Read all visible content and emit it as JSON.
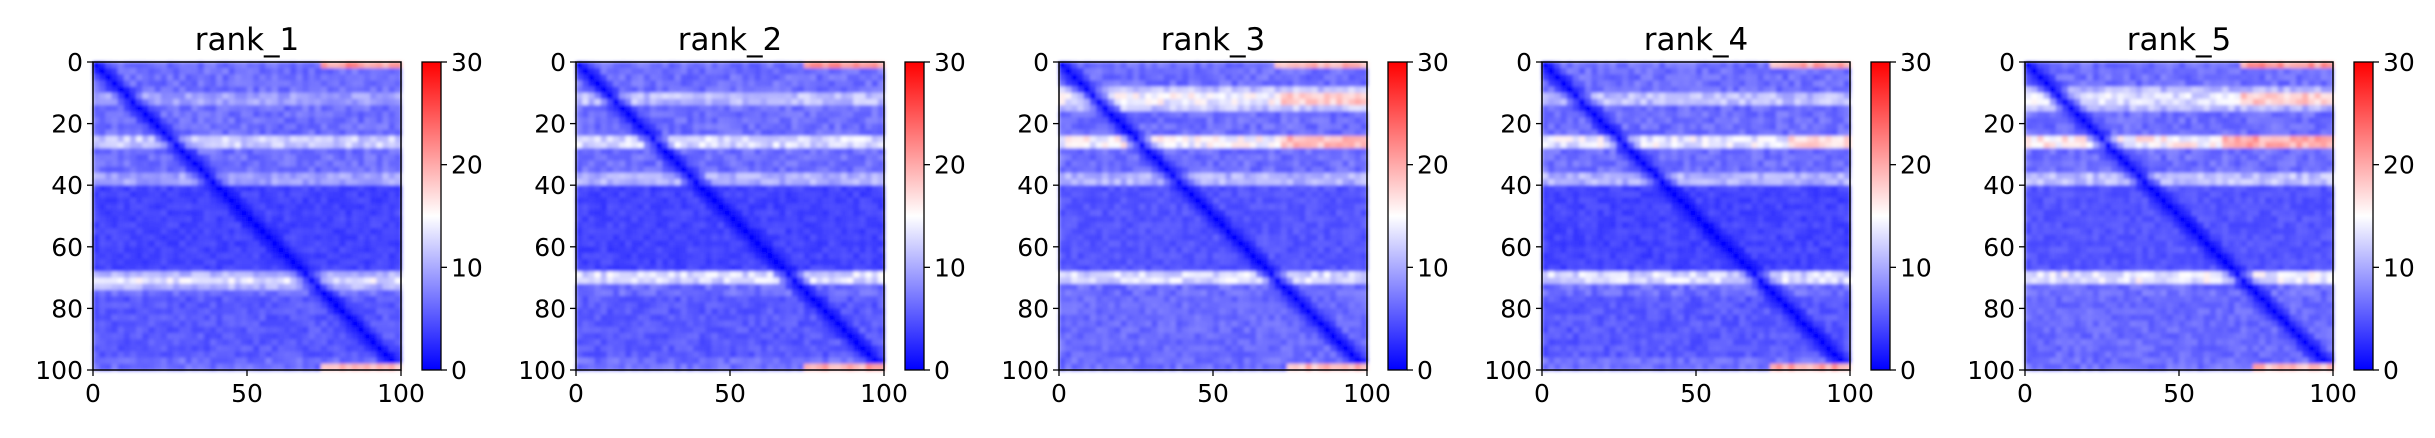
{
  "chart_data": [
    {
      "type": "heatmap",
      "title": "rank_1",
      "xlim": [
        0,
        100
      ],
      "ylim": [
        100,
        0
      ],
      "xticks": [
        "0",
        "50",
        "100"
      ],
      "yticks": [
        "0",
        "20",
        "40",
        "60",
        "80",
        "100"
      ],
      "colorbar": {
        "range": [
          0,
          30
        ],
        "ticks": [
          "0",
          "10",
          "20",
          "30"
        ],
        "colormap": "bwr"
      },
      "bands": [
        {
          "center": 12,
          "width": 3,
          "value": 11
        },
        {
          "center": 26,
          "width": 3,
          "value": 14
        },
        {
          "center": 38,
          "width": 2,
          "value": 12
        },
        {
          "center": 71,
          "width": 3,
          "value": 14
        }
      ],
      "red_patches": [
        {
          "x": [
            75,
            100
          ],
          "y": [
            0,
            2
          ],
          "value": 22
        },
        {
          "x": [
            75,
            100
          ],
          "y": [
            98,
            100
          ],
          "value": 20
        }
      ],
      "diagonal_value": 0,
      "lower_block_value": 3
    },
    {
      "type": "heatmap",
      "title": "rank_2",
      "xlim": [
        0,
        100
      ],
      "ylim": [
        100,
        0
      ],
      "xticks": [
        "0",
        "50",
        "100"
      ],
      "yticks": [
        "0",
        "20",
        "40",
        "60",
        "80",
        "100"
      ],
      "colorbar": {
        "range": [
          0,
          30
        ],
        "ticks": [
          "0",
          "10",
          "20",
          "30"
        ],
        "colormap": "bwr"
      },
      "bands": [
        {
          "center": 12,
          "width": 3,
          "value": 13
        },
        {
          "center": 26,
          "width": 3,
          "value": 15
        },
        {
          "center": 38,
          "width": 2,
          "value": 13
        },
        {
          "center": 70,
          "width": 3,
          "value": 15
        }
      ],
      "red_patches": [
        {
          "x": [
            75,
            100
          ],
          "y": [
            0,
            2
          ],
          "value": 22
        },
        {
          "x": [
            75,
            100
          ],
          "y": [
            98,
            100
          ],
          "value": 21
        }
      ],
      "diagonal_value": 0,
      "lower_block_value": 3
    },
    {
      "type": "heatmap",
      "title": "rank_3",
      "xlim": [
        0,
        100
      ],
      "ylim": [
        100,
        0
      ],
      "xticks": [
        "0",
        "50",
        "100"
      ],
      "yticks": [
        "0",
        "20",
        "40",
        "60",
        "80",
        "100"
      ],
      "colorbar": {
        "range": [
          0,
          30
        ],
        "ticks": [
          "0",
          "10",
          "20",
          "30"
        ],
        "colormap": "bwr"
      },
      "bands": [
        {
          "center": 12,
          "width": 4,
          "value": 16
        },
        {
          "center": 26,
          "width": 3,
          "value": 17
        },
        {
          "center": 38,
          "width": 2,
          "value": 13
        },
        {
          "center": 70,
          "width": 3,
          "value": 15
        }
      ],
      "red_patches": [
        {
          "x": [
            70,
            100
          ],
          "y": [
            0,
            2
          ],
          "value": 20
        },
        {
          "x": [
            72,
            100
          ],
          "y": [
            10,
            14
          ],
          "value": 19
        },
        {
          "x": [
            72,
            100
          ],
          "y": [
            24,
            28
          ],
          "value": 20
        },
        {
          "x": [
            75,
            100
          ],
          "y": [
            98,
            100
          ],
          "value": 20
        }
      ],
      "diagonal_value": 0,
      "lower_block_value": 4
    },
    {
      "type": "heatmap",
      "title": "rank_4",
      "xlim": [
        0,
        100
      ],
      "ylim": [
        100,
        0
      ],
      "xticks": [
        "0",
        "50",
        "100"
      ],
      "yticks": [
        "0",
        "20",
        "40",
        "60",
        "80",
        "100"
      ],
      "colorbar": {
        "range": [
          0,
          30
        ],
        "ticks": [
          "0",
          "10",
          "20",
          "30"
        ],
        "colormap": "bwr"
      },
      "bands": [
        {
          "center": 12,
          "width": 3,
          "value": 13
        },
        {
          "center": 26,
          "width": 3,
          "value": 16
        },
        {
          "center": 38,
          "width": 2,
          "value": 13
        },
        {
          "center": 70,
          "width": 3,
          "value": 15
        }
      ],
      "red_patches": [
        {
          "x": [
            75,
            100
          ],
          "y": [
            0,
            2
          ],
          "value": 21
        },
        {
          "x": [
            80,
            100
          ],
          "y": [
            24,
            28
          ],
          "value": 18
        },
        {
          "x": [
            75,
            100
          ],
          "y": [
            98,
            100
          ],
          "value": 21
        }
      ],
      "diagonal_value": 0,
      "lower_block_value": 3
    },
    {
      "type": "heatmap",
      "title": "rank_5",
      "xlim": [
        0,
        100
      ],
      "ylim": [
        100,
        0
      ],
      "xticks": [
        "0",
        "50",
        "100"
      ],
      "yticks": [
        "0",
        "20",
        "40",
        "60",
        "80",
        "100"
      ],
      "colorbar": {
        "range": [
          0,
          30
        ],
        "ticks": [
          "0",
          "10",
          "20",
          "30"
        ],
        "colormap": "bwr"
      },
      "bands": [
        {
          "center": 12,
          "width": 4,
          "value": 15
        },
        {
          "center": 26,
          "width": 3,
          "value": 18
        },
        {
          "center": 38,
          "width": 2,
          "value": 14
        },
        {
          "center": 70,
          "width": 3,
          "value": 16
        }
      ],
      "red_patches": [
        {
          "x": [
            70,
            100
          ],
          "y": [
            0,
            2
          ],
          "value": 22
        },
        {
          "x": [
            70,
            100
          ],
          "y": [
            10,
            14
          ],
          "value": 19
        },
        {
          "x": [
            65,
            100
          ],
          "y": [
            24,
            28
          ],
          "value": 21
        },
        {
          "x": [
            75,
            100
          ],
          "y": [
            98,
            100
          ],
          "value": 20
        }
      ],
      "diagonal_value": 0,
      "lower_block_value": 4
    }
  ]
}
